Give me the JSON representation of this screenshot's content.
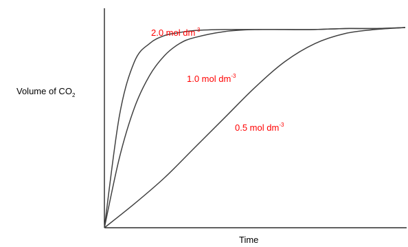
{
  "chart_data": {
    "type": "line",
    "title": "",
    "xlabel": "Time",
    "ylabel_main": "Volume of CO",
    "ylabel_sub": "2",
    "xlim": [
      0,
      1
    ],
    "ylim": [
      0,
      1
    ],
    "grid": false,
    "label_color": "#ff0000",
    "line_color": "#404040",
    "series": [
      {
        "name": "2.0 mol dm",
        "name_sup": "-3",
        "x": [
          0,
          0.05,
          0.1,
          0.15,
          0.2,
          0.25,
          0.3,
          0.4,
          0.5,
          0.6,
          0.7,
          0.8,
          0.9,
          1.0
        ],
        "y": [
          0,
          0.56,
          0.83,
          0.92,
          0.96,
          0.975,
          0.985,
          0.99,
          0.99,
          0.99,
          0.99,
          0.995,
          0.995,
          1.0
        ]
      },
      {
        "name": "1.0 mol dm",
        "name_sup": "-3",
        "x": [
          0,
          0.05,
          0.1,
          0.15,
          0.2,
          0.25,
          0.3,
          0.4,
          0.5,
          0.6,
          0.7,
          0.8,
          0.9,
          1.0
        ],
        "y": [
          0,
          0.35,
          0.6,
          0.76,
          0.86,
          0.92,
          0.95,
          0.98,
          0.99,
          0.99,
          0.99,
          0.995,
          0.995,
          1.0
        ]
      },
      {
        "name": "0.5 mol dm",
        "name_sup": "-3",
        "x": [
          0,
          0.1,
          0.2,
          0.3,
          0.4,
          0.5,
          0.6,
          0.7,
          0.8,
          0.9,
          1.0
        ],
        "y": [
          0,
          0.12,
          0.25,
          0.4,
          0.55,
          0.7,
          0.83,
          0.92,
          0.97,
          0.99,
          1.0
        ]
      }
    ]
  }
}
